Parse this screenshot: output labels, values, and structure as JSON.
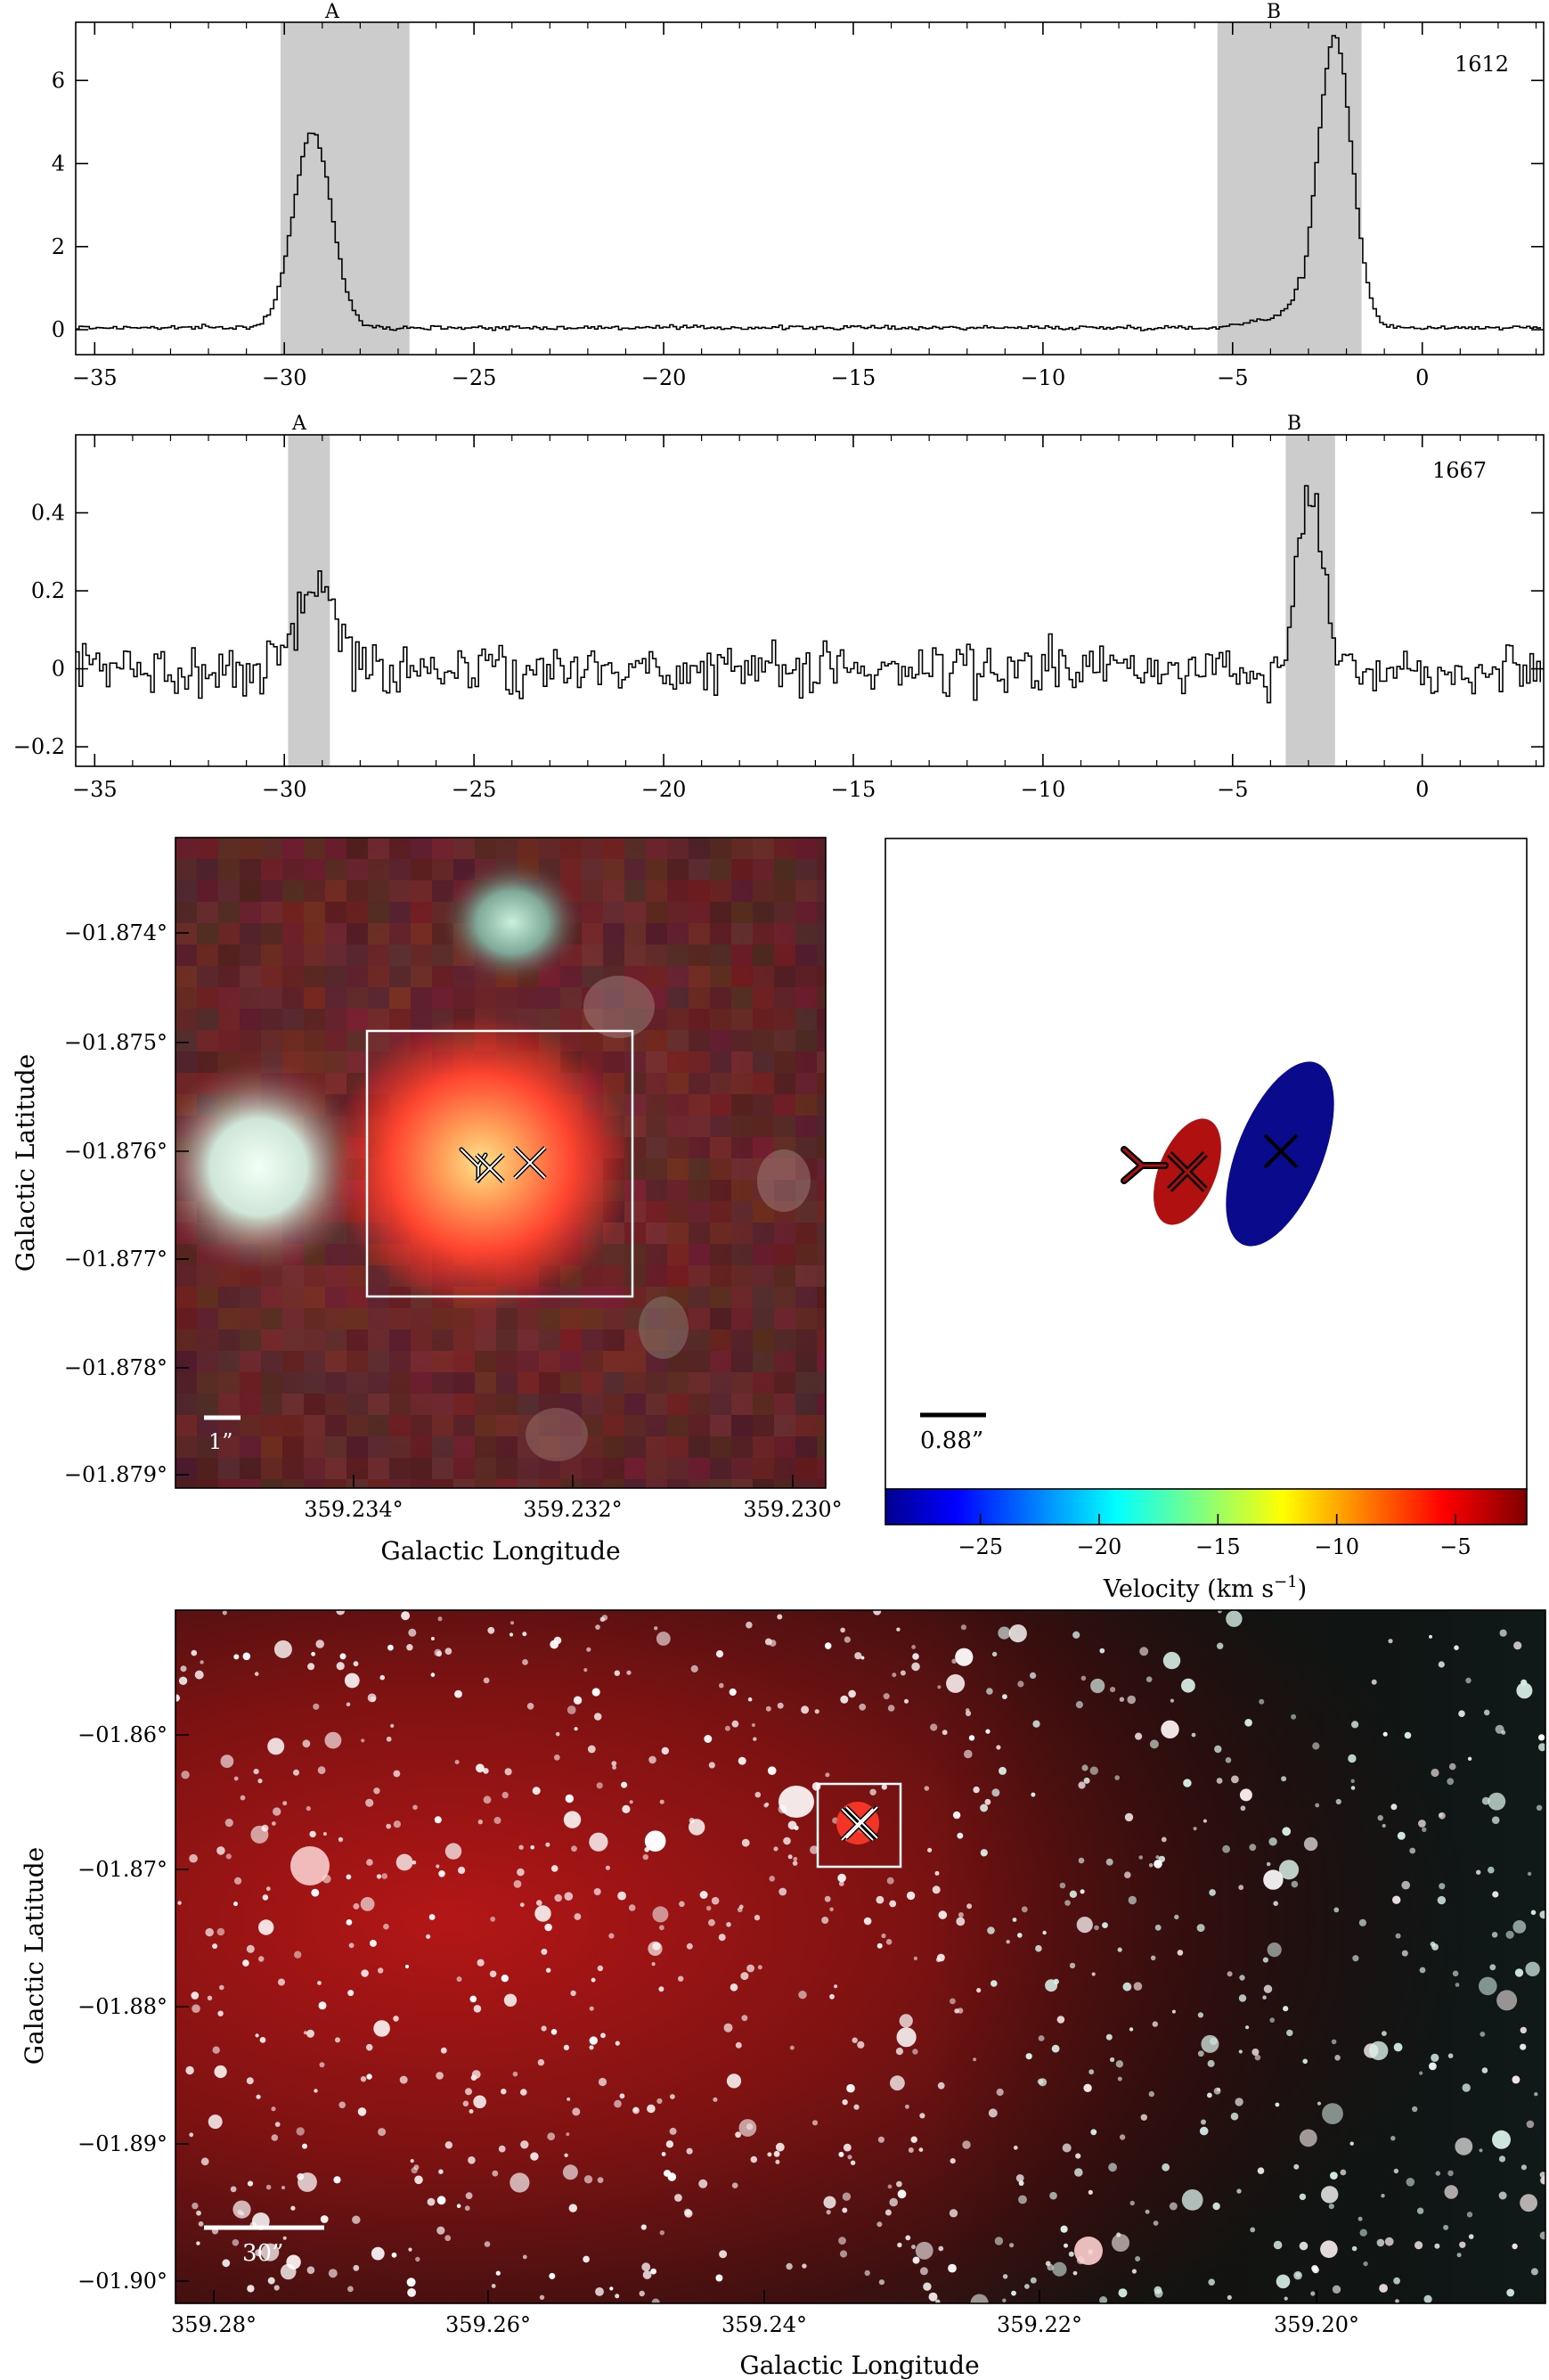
{
  "chart_data": [
    {
      "type": "line",
      "panel": "spectrum-1612",
      "label": "1612",
      "xlim": [
        -35.5,
        3.2
      ],
      "ylim": [
        -0.6,
        7.4
      ],
      "xticks": [
        "−35",
        "−30",
        "−25",
        "−20",
        "−15",
        "−10",
        "−5",
        "0"
      ],
      "xtick_values": [
        -35,
        -30,
        -25,
        -20,
        -15,
        -10,
        -5,
        0
      ],
      "yticks": [
        "0",
        "2",
        "4",
        "6"
      ],
      "ytick_values": [
        0,
        2,
        4,
        6
      ],
      "shaded_regions": [
        {
          "name": "A",
          "from": -30.1,
          "to": -26.7
        },
        {
          "name": "B",
          "from": -5.4,
          "to": -1.6
        }
      ],
      "peaks": [
        {
          "center": -29.3,
          "height": 4.7,
          "width": 0.5
        },
        {
          "center": -2.35,
          "height": 7.0,
          "width": 0.45
        }
      ],
      "baseline": 0.05,
      "noise": 0.05,
      "plateau": {
        "from": -5.4,
        "to": -3.2,
        "height": 0.4
      }
    },
    {
      "type": "line",
      "panel": "spectrum-1667",
      "label": "1667",
      "xlim": [
        -35.5,
        3.2
      ],
      "ylim": [
        -0.25,
        0.6
      ],
      "xticks": [
        "−35",
        "−30",
        "−25",
        "−20",
        "−15",
        "−10",
        "−5",
        "0"
      ],
      "xtick_values": [
        -35,
        -30,
        -25,
        -20,
        -15,
        -10,
        -5,
        0
      ],
      "yticks": [
        "−0.2",
        "0",
        "0.2",
        "0.4"
      ],
      "ytick_values": [
        -0.2,
        0,
        0.2,
        0.4
      ],
      "shaded_regions": [
        {
          "name": "A",
          "from": -29.9,
          "to": -28.8
        },
        {
          "name": "B",
          "from": -3.6,
          "to": -2.3
        }
      ],
      "peaks": [
        {
          "center": -29.2,
          "height": 0.22,
          "width": 0.5
        },
        {
          "center": -3.0,
          "height": 0.45,
          "width": 0.35
        }
      ],
      "baseline": 0.0,
      "noise": 0.065
    },
    {
      "type": "image",
      "panel": "zoom-image",
      "xlabel": "Galactic Longitude",
      "ylabel": "Galactic Latitude",
      "xticks": [
        "359.234°",
        "359.232°",
        "359.230°"
      ],
      "yticks": [
        "−01.874°",
        "−01.875°",
        "−01.876°",
        "−01.877°",
        "−01.878°",
        "−01.879°"
      ],
      "scalebar": "1”"
    },
    {
      "type": "scatter",
      "panel": "velocity-map",
      "scalebar": "0.88”",
      "colorbar": {
        "label": "Velocity (km s",
        "label_sup": "−1",
        "label_end": ")",
        "range": [
          -29,
          -2
        ],
        "ticks": [
          "−25",
          "−20",
          "−15",
          "−10",
          "−5"
        ],
        "tick_values": [
          -25,
          -20,
          -15,
          -10,
          -5
        ]
      },
      "components": [
        {
          "name": "A",
          "velocity": -28.5,
          "color": "#0a0a8c"
        },
        {
          "name": "B",
          "velocity": -3.0,
          "color": "#b01010"
        }
      ]
    },
    {
      "type": "image",
      "panel": "wide-field-image",
      "xlabel": "Galactic Longitude",
      "ylabel": "Galactic Latitude",
      "xticks": [
        "359.28°",
        "359.26°",
        "359.24°",
        "359.22°",
        "359.20°"
      ],
      "yticks": [
        "−01.86°",
        "−01.87°",
        "−01.88°",
        "−01.89°",
        "−01.90°"
      ],
      "scalebar": "30”"
    }
  ]
}
